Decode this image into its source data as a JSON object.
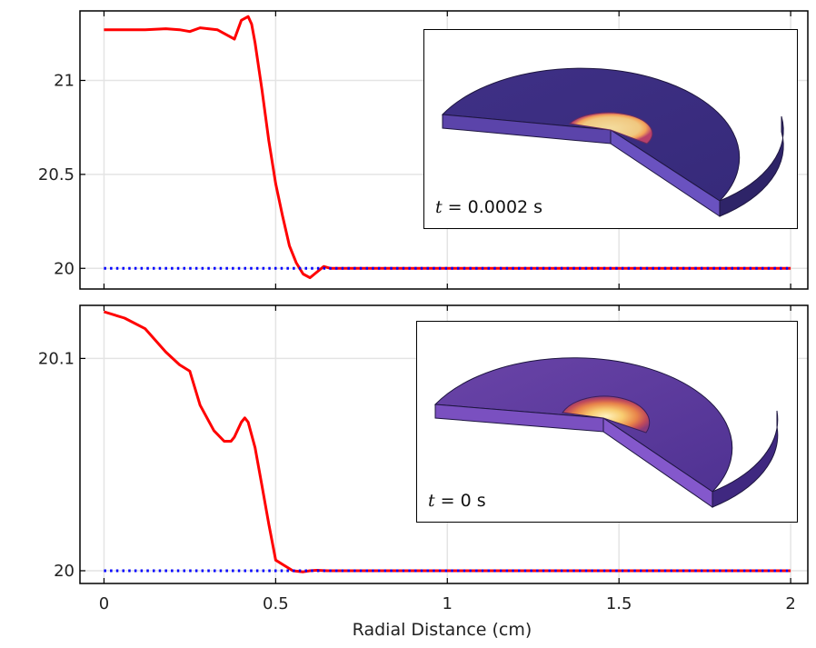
{
  "chart_data": [
    {
      "type": "line",
      "title": "",
      "xlabel": "",
      "ylabel": "",
      "xlim": [
        -0.07,
        2.05
      ],
      "ylim": [
        19.89,
        21.37
      ],
      "x_ticks": [
        0,
        0.5,
        1,
        1.5,
        2
      ],
      "y_ticks": [
        20,
        20.5,
        21
      ],
      "y_tick_labels": [
        "20",
        "20.5",
        "21"
      ],
      "grid": true,
      "series": [
        {
          "style": "solid",
          "color": "#ff0000",
          "x": [
            0,
            0.05,
            0.12,
            0.18,
            0.22,
            0.25,
            0.28,
            0.33,
            0.36,
            0.38,
            0.4,
            0.42,
            0.43,
            0.44,
            0.46,
            0.48,
            0.5,
            0.52,
            0.54,
            0.56,
            0.58,
            0.6,
            0.62,
            0.64,
            0.66,
            0.7,
            1.0,
            1.5,
            2.0
          ],
          "y": [
            21.27,
            21.27,
            21.27,
            21.275,
            21.27,
            21.26,
            21.28,
            21.27,
            21.24,
            21.22,
            21.32,
            21.34,
            21.3,
            21.2,
            20.95,
            20.68,
            20.45,
            20.28,
            20.12,
            20.03,
            19.97,
            19.95,
            19.98,
            20.01,
            20.0,
            20.0,
            20.0,
            20.0,
            20.0
          ]
        },
        {
          "style": "dotted",
          "color": "#0000ff",
          "x": [
            0,
            2
          ],
          "y": [
            20.0,
            20.0
          ]
        }
      ],
      "inset": {
        "label_var": "t",
        "label_value": " = 0.0002 s"
      }
    },
    {
      "type": "line",
      "title": "",
      "xlabel": "Radial Distance (cm)",
      "ylabel": "",
      "xlim": [
        -0.07,
        2.05
      ],
      "ylim": [
        19.994,
        20.125
      ],
      "x_ticks": [
        0,
        0.5,
        1,
        1.5,
        2
      ],
      "x_tick_labels": [
        "0",
        "0.5",
        "1",
        "1.5",
        "2"
      ],
      "y_ticks": [
        20,
        20.1
      ],
      "y_tick_labels": [
        "20",
        "20.1"
      ],
      "grid": true,
      "series": [
        {
          "style": "solid",
          "color": "#ff0000",
          "x": [
            0,
            0.06,
            0.12,
            0.18,
            0.22,
            0.25,
            0.28,
            0.32,
            0.35,
            0.37,
            0.38,
            0.4,
            0.41,
            0.42,
            0.44,
            0.46,
            0.48,
            0.5,
            0.52,
            0.55,
            0.58,
            0.6,
            0.62,
            0.65,
            1.0,
            1.5,
            2.0
          ],
          "y": [
            20.122,
            20.119,
            20.114,
            20.103,
            20.097,
            20.094,
            20.078,
            20.066,
            20.061,
            20.061,
            20.063,
            20.07,
            20.072,
            20.07,
            20.058,
            20.04,
            20.022,
            20.005,
            20.003,
            20.0,
            19.9995,
            20.0,
            20.0002,
            20.0,
            20.0,
            20.0,
            20.0
          ]
        },
        {
          "style": "dotted",
          "color": "#0000ff",
          "x": [
            0,
            2
          ],
          "y": [
            20.0,
            20.0
          ]
        }
      ],
      "inset": {
        "label_var": "t",
        "label_value": " = 0 s"
      }
    }
  ]
}
